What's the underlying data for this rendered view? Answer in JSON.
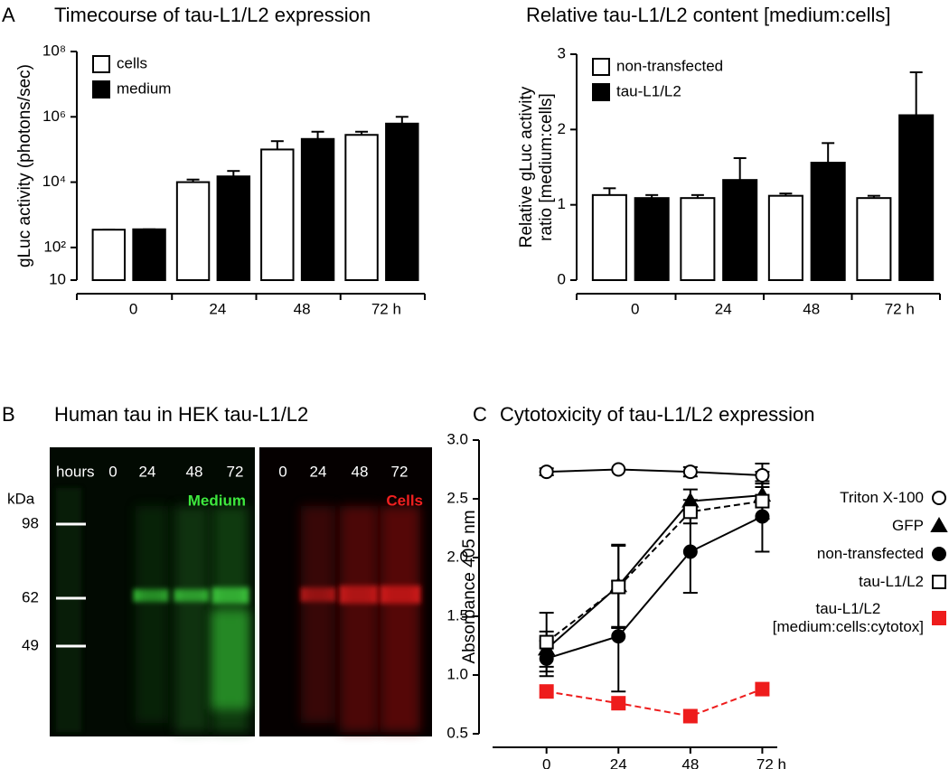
{
  "chart_data": [
    {
      "type": "bar",
      "panel": "A",
      "title": "Timecourse of tau-L1/L2 expression",
      "ylabel": "gLuc activity (photons/sec)",
      "log": true,
      "categories": [
        "0",
        "24",
        "48",
        "72 h"
      ],
      "series": [
        {
          "name": "cells",
          "color": "#ffffff",
          "values": [
            350,
            10000,
            100000,
            280000
          ],
          "errors": [
            0,
            2000,
            80000,
            70000
          ]
        },
        {
          "name": "medium",
          "color": "#000000",
          "values": [
            360,
            15000,
            210000,
            620000
          ],
          "errors": [
            0,
            7000,
            140000,
            380000
          ]
        }
      ],
      "ylim": [
        10,
        100000000
      ],
      "yticks": [
        10,
        {
          "value": 100,
          "label": "10²"
        },
        {
          "value": 10000,
          "label": "10⁴"
        },
        {
          "value": 1000000,
          "label": "10⁶"
        },
        {
          "value": 100000000,
          "label": "10⁸"
        }
      ],
      "legend": "top-left"
    },
    {
      "type": "bar",
      "title": "Relative tau-L1/L2 content [medium:cells]",
      "ylabel": [
        "Relative gLuc activity",
        "ratio [medium:cells]"
      ],
      "log": false,
      "categories": [
        "0",
        "24",
        "48",
        "72 h"
      ],
      "series": [
        {
          "name": "non-transfected",
          "color": "#ffffff",
          "values": [
            1.13,
            1.09,
            1.12,
            1.09
          ],
          "errors": [
            0.09,
            0.04,
            0.03,
            0.03
          ]
        },
        {
          "name": "tau-L1/L2",
          "color": "#000000",
          "values": [
            1.09,
            1.33,
            1.56,
            2.19
          ],
          "errors": [
            0.04,
            0.29,
            0.26,
            0.57
          ]
        }
      ],
      "ylim": [
        0,
        3
      ],
      "yticks": [
        0,
        1,
        2,
        3
      ],
      "legend": "top-left"
    },
    {
      "type": "line",
      "panel": "C",
      "title": "Cytotoxicity of tau-L1/L2 expression",
      "ylabel": "Absorbance 405 nm",
      "x": [
        0,
        24,
        48,
        72
      ],
      "series": [
        {
          "name": "Triton X-100",
          "color": "#000000",
          "marker": "circle-open",
          "dashed": false,
          "values": [
            2.73,
            2.75,
            2.73,
            2.7
          ],
          "errors": [
            0.03,
            0.0,
            0.04,
            0.1
          ]
        },
        {
          "name": "GFP",
          "color": "#000000",
          "marker": "triangle",
          "dashed": false,
          "values": [
            1.22,
            1.76,
            2.48,
            2.53
          ],
          "errors": [
            0.15,
            0.35,
            0.1,
            0.2
          ]
        },
        {
          "name": "non-transfected",
          "color": "#000000",
          "marker": "circle",
          "dashed": false,
          "values": [
            1.14,
            1.33,
            2.05,
            2.35
          ],
          "errors": [
            0.15,
            0.47,
            0.35,
            0.3
          ]
        },
        {
          "name": "tau-L1/L2",
          "color": "#000000",
          "marker": "square-open",
          "dashed": true,
          "values": [
            1.28,
            1.75,
            2.39,
            2.48
          ],
          "errors": [
            0.25,
            0.35,
            0.1,
            0.15
          ]
        },
        {
          "name": "tau-L1/L2 [medium:cells:cytotox]",
          "color": "#ee1c1c",
          "marker": "square",
          "dashed": true,
          "values": [
            0.86,
            0.76,
            0.65,
            0.88
          ],
          "errors": [
            0,
            0,
            0,
            0
          ]
        }
      ],
      "xlim": [
        -18,
        77
      ],
      "xticks": [
        0,
        24,
        48,
        {
          "value": 72,
          "label": "72 h"
        }
      ],
      "ylim": [
        0.5,
        3.0
      ],
      "yticks": [
        {
          "value": 0.5,
          "label": "0.5"
        },
        {
          "value": 1.0,
          "label": "1.0"
        },
        {
          "value": 1.5,
          "label": "1.5"
        },
        {
          "value": 2.0,
          "label": "2.0"
        },
        {
          "value": 2.5,
          "label": "2.5"
        },
        {
          "value": 3.0,
          "label": "3.0"
        }
      ],
      "legend": "right"
    }
  ],
  "blot": {
    "panel": "B",
    "title": "Human tau in HEK tau-L1/L2",
    "unit": "kDa",
    "markers": [
      98,
      62,
      49
    ],
    "lane_header": "hours",
    "lanes_medium": [
      "0",
      "24",
      "48",
      "72"
    ],
    "lanes_cells": [
      "0",
      "24",
      "48",
      "72"
    ],
    "label_medium": "Medium",
    "label_cells": "Cells"
  }
}
